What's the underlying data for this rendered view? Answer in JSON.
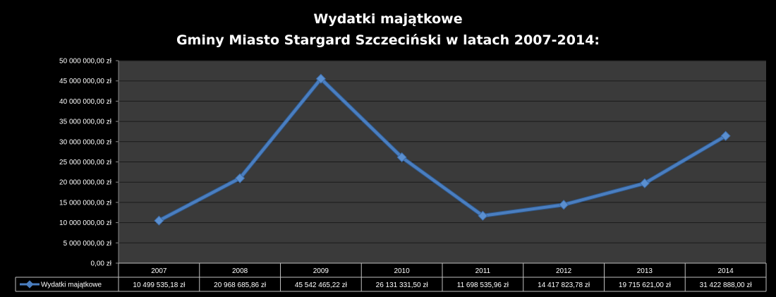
{
  "chart_data": {
    "type": "line",
    "title": "Wydatki majątkowe",
    "subtitle": "Gminy Miasto  Stargard Szczeciński w latach 2007-2014:",
    "categories": [
      "2007",
      "2008",
      "2009",
      "2010",
      "2011",
      "2012",
      "2013",
      "2014"
    ],
    "series": [
      {
        "name": "Wydatki majątkowe",
        "values": [
          10499535.18,
          20968685.86,
          45542465.22,
          26131331.5,
          11698535.96,
          14417823.78,
          19715621.0,
          31422888.0
        ],
        "value_labels": [
          "10 499 535,18 zł",
          "20 968 685,86 zł",
          "45 542 465,22 zł",
          "26 131 331,50 zł",
          "11 698 535,96 zł",
          "14 417 823,78 zł",
          "19 715 621,00 zł",
          "31 422 888,00 zł"
        ]
      }
    ],
    "ylim": [
      0,
      50000000
    ],
    "y_ticks": [
      0,
      5000000,
      10000000,
      15000000,
      20000000,
      25000000,
      30000000,
      35000000,
      40000000,
      45000000,
      50000000
    ],
    "y_tick_labels": [
      "0,00 zł",
      "5 000 000,00 zł",
      "10 000 000,00 zł",
      "15 000 000,00 zł",
      "20 000 000,00 zł",
      "25 000 000,00 zł",
      "30 000 000,00 zł",
      "35 000 000,00 zł",
      "40 000 000,00 zł",
      "45 000 000,00 zł",
      "50 000 000,00 zł"
    ],
    "grid": true,
    "data_table": true,
    "colors": {
      "background": "#000000",
      "plot_area": "#3a3a3a",
      "line": "#4a7ec0",
      "grid": "#1a1a1a"
    }
  }
}
